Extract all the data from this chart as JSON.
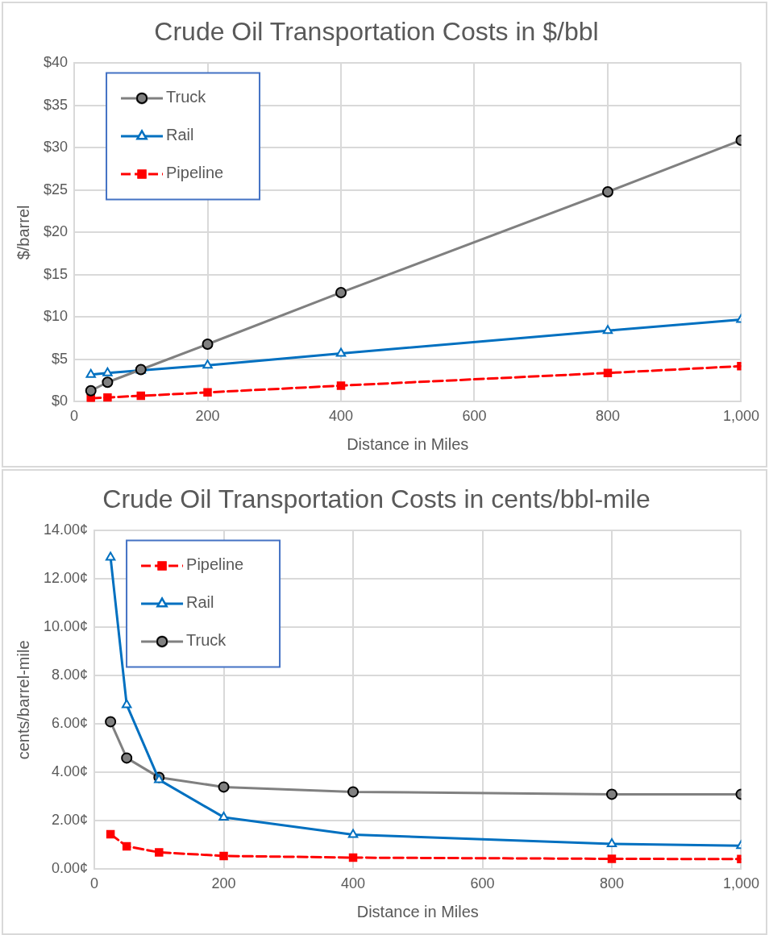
{
  "chart_data": [
    {
      "type": "line",
      "title": "Crude Oil Transportation Costs in $/bbl",
      "xlabel": "Distance in Miles",
      "ylabel": "$/barrel",
      "x": [
        25,
        50,
        100,
        200,
        400,
        800,
        1000
      ],
      "series": [
        {
          "name": "Truck",
          "color": "#808080",
          "marker": "circle",
          "line_style": "solid",
          "values": [
            1.3,
            2.3,
            3.8,
            6.8,
            12.9,
            24.8,
            30.9
          ]
        },
        {
          "name": "Rail",
          "color": "#0070c0",
          "marker": "triangle",
          "line_style": "solid",
          "values": [
            3.2,
            3.4,
            3.7,
            4.3,
            5.7,
            8.4,
            9.7
          ]
        },
        {
          "name": "Pipeline",
          "color": "#ff0000",
          "marker": "square",
          "line_style": "dashed",
          "values": [
            0.4,
            0.5,
            0.7,
            1.1,
            1.9,
            3.4,
            4.2
          ]
        }
      ],
      "xlim": [
        0,
        1000
      ],
      "xticks": [
        0,
        200,
        400,
        600,
        800,
        {
          "value": 1000,
          "label": "1,000"
        }
      ],
      "ylim": [
        0,
        40
      ],
      "yticks": [
        {
          "value": 0,
          "label": "$0"
        },
        {
          "value": 5,
          "label": "$5"
        },
        {
          "value": 10,
          "label": "$10"
        },
        {
          "value": 15,
          "label": "$15"
        },
        {
          "value": 20,
          "label": "$20"
        },
        {
          "value": 25,
          "label": "$25"
        },
        {
          "value": 30,
          "label": "$30"
        },
        {
          "value": 35,
          "label": "$35"
        },
        {
          "value": 40,
          "label": "$40"
        }
      ],
      "grid": true,
      "legend": "top left"
    },
    {
      "type": "line",
      "title": "Crude Oil Transportation Costs in cents/bbl-mile",
      "xlabel": "Distance in Miles",
      "ylabel": "cents/barrel-mile",
      "x": [
        25,
        50,
        100,
        200,
        400,
        800,
        1000
      ],
      "series": [
        {
          "name": "Pipeline",
          "color": "#ff0000",
          "marker": "square",
          "line_style": "dashed",
          "values": [
            1.45,
            0.95,
            0.7,
            0.55,
            0.48,
            0.43,
            0.42
          ]
        },
        {
          "name": "Rail",
          "color": "#0070c0",
          "marker": "triangle",
          "line_style": "solid",
          "values": [
            12.9,
            6.8,
            3.7,
            2.15,
            1.43,
            1.05,
            0.97
          ]
        },
        {
          "name": "Truck",
          "color": "#808080",
          "marker": "circle",
          "line_style": "solid",
          "values": [
            6.1,
            4.6,
            3.8,
            3.4,
            3.2,
            3.1,
            3.1
          ]
        }
      ],
      "xlim": [
        0,
        1000
      ],
      "xticks": [
        0,
        200,
        400,
        600,
        800,
        {
          "value": 1000,
          "label": "1,000"
        }
      ],
      "ylim": [
        0,
        14
      ],
      "yticks": [
        {
          "value": 0,
          "label": "0.00¢"
        },
        {
          "value": 2,
          "label": "2.00¢"
        },
        {
          "value": 4,
          "label": "4.00¢"
        },
        {
          "value": 6,
          "label": "6.00¢"
        },
        {
          "value": 8,
          "label": "8.00¢"
        },
        {
          "value": 10,
          "label": "10.00¢"
        },
        {
          "value": 12,
          "label": "12.00¢"
        },
        {
          "value": 14,
          "label": "14.00¢"
        }
      ],
      "grid": true,
      "legend": "top left"
    }
  ]
}
